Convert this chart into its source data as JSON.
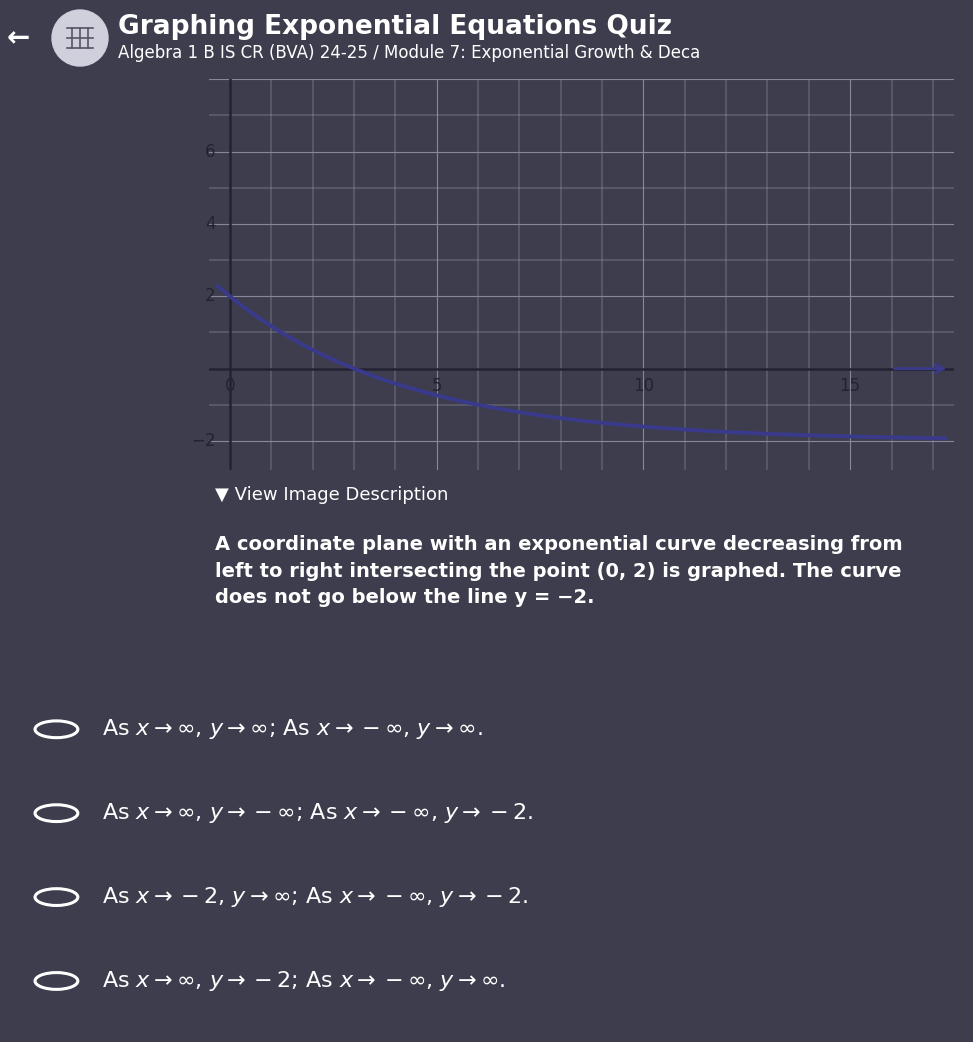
{
  "title": "Graphing Exponential Equations Quiz",
  "subtitle": "Algebra 1 B IS CR (BVA) 24-25 / Module 7: Exponential Growth & Deca",
  "header_bg": "#2d7dd2",
  "header_text_color": "#ffffff",
  "graph_bg": "#eeeef2",
  "grid_minor_color": "#aaaabb",
  "grid_major_color": "#888899",
  "axis_color": "#222233",
  "curve_color": "#3a3a8c",
  "curve_linewidth": 2.8,
  "x_min": -0.5,
  "x_max": 17.5,
  "y_min": -2.8,
  "y_max": 8.0,
  "x_ticks": [
    0,
    5,
    10,
    15
  ],
  "y_ticks": [
    -2,
    2,
    4,
    6
  ],
  "asymptote": -2,
  "y_intercept": 2,
  "decay_rate": 0.794,
  "body_bg": "#3d3d4d",
  "description_header": "▼ View Image Description",
  "description_text": "A coordinate plane with an exponential curve decreasing from\nleft to right intersecting the point (0, 2) is graphed. The curve\ndoes not go below the line y = −2.",
  "options_latex": [
    "As $x \\to \\infty$, $y \\to \\infty$; As $x \\to -\\infty$, $y \\to \\infty$.",
    "As $x \\to \\infty$, $y \\to -\\infty$; As $x \\to -\\infty$, $y \\to -2$.",
    "As $x \\to -2$, $y \\to \\infty$; As $x \\to -\\infty$, $y \\to -2$.",
    "As $x \\to \\infty$, $y \\to -2$; As $x \\to -\\infty$, $y \\to \\infty$."
  ],
  "circle_color": "#aaaaaa",
  "icon_circle_color": "#d0d0dd"
}
